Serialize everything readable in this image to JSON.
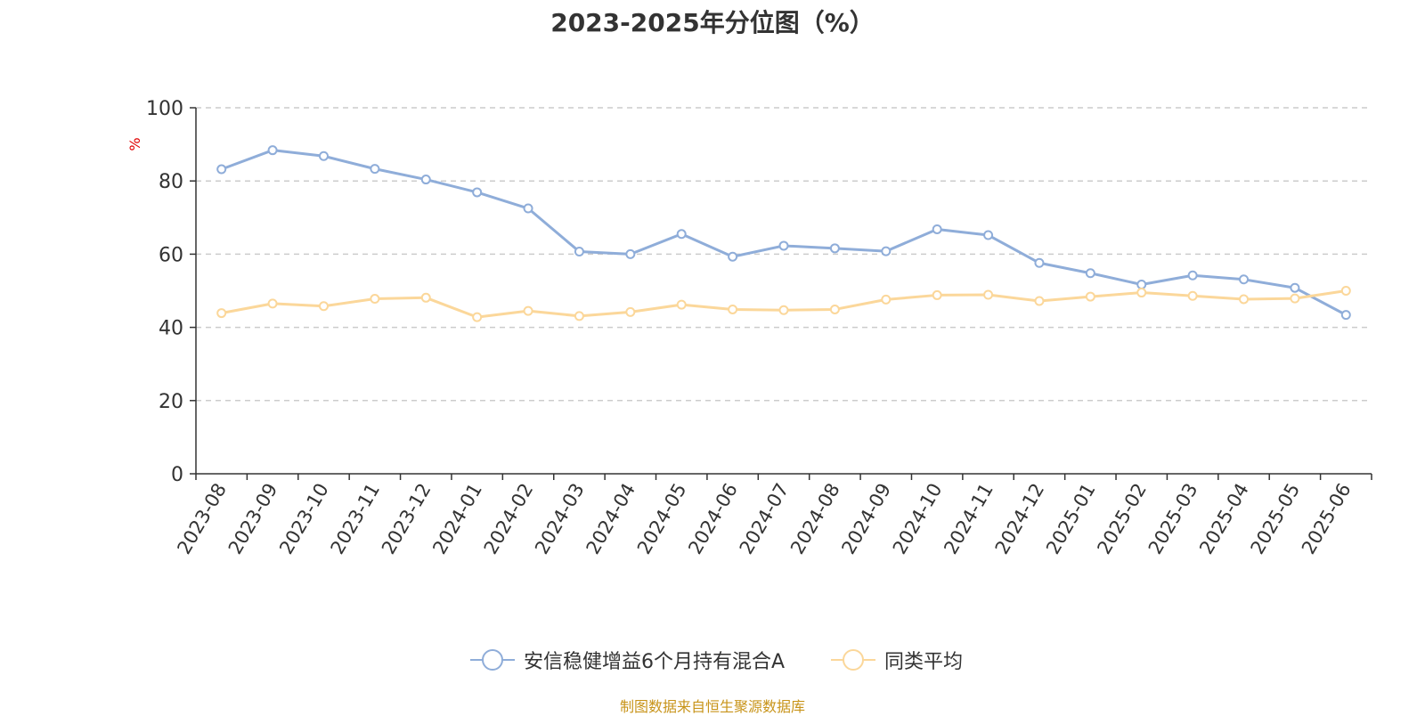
{
  "chart_data": {
    "type": "line",
    "title": "2023-2025年分位图（%）",
    "ylabel": "%",
    "xlabel": "",
    "ylim": [
      0,
      100
    ],
    "yticks": [
      0,
      20,
      40,
      60,
      80,
      100
    ],
    "grid": true,
    "legend_position": "bottom",
    "categories": [
      "2023-08",
      "2023-09",
      "2023-10",
      "2023-11",
      "2023-12",
      "2024-01",
      "2024-02",
      "2024-03",
      "2024-04",
      "2024-05",
      "2024-06",
      "2024-07",
      "2024-08",
      "2024-09",
      "2024-10",
      "2024-11",
      "2024-12",
      "2025-01",
      "2025-02",
      "2025-03",
      "2025-04",
      "2025-05",
      "2025-06"
    ],
    "series": [
      {
        "name": "安信稳健增益6个月持有混合A",
        "color": "#8fadd9",
        "values": [
          83.2,
          88.4,
          86.8,
          83.3,
          80.4,
          76.9,
          72.5,
          60.7,
          60.0,
          65.5,
          59.3,
          62.3,
          61.6,
          60.8,
          66.8,
          65.2,
          57.6,
          54.8,
          51.7,
          54.2,
          53.1,
          50.8,
          43.4
        ]
      },
      {
        "name": "同类平均",
        "color": "#fbd79a",
        "values": [
          43.9,
          46.5,
          45.8,
          47.8,
          48.1,
          42.8,
          44.5,
          43.1,
          44.2,
          46.2,
          44.9,
          44.7,
          44.9,
          47.6,
          48.8,
          48.9,
          47.2,
          48.4,
          49.5,
          48.6,
          47.7,
          47.9,
          50.0
        ]
      }
    ]
  },
  "source_note": "制图数据来自恒生聚源数据库"
}
